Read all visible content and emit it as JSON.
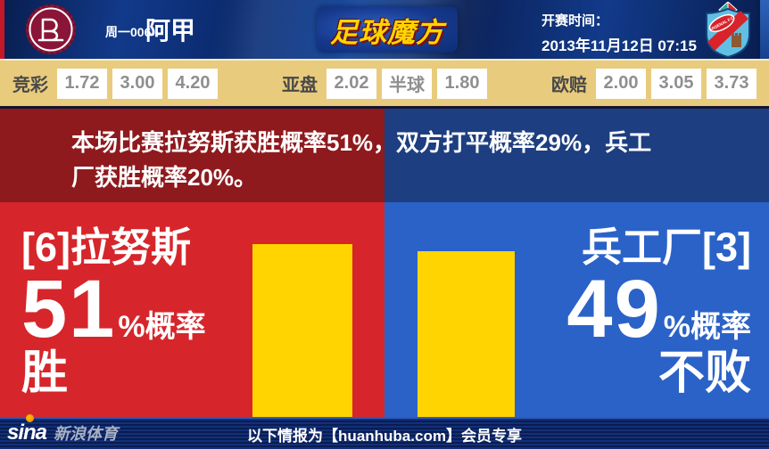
{
  "header": {
    "match_label": "周一006",
    "league": "阿甲",
    "brand_logo_text": "足球魔方",
    "kickoff_label": "开赛时间：",
    "kickoff_time": "2013年11月12日 07:15",
    "away_crest_text": "ARSENAL F.C."
  },
  "odds": {
    "groups": [
      {
        "label": "竞彩",
        "values": [
          "1.72",
          "3.00",
          "4.20"
        ]
      },
      {
        "label": "亚盘",
        "values": [
          "2.02",
          "半球",
          "1.80"
        ]
      },
      {
        "label": "欧赔",
        "values": [
          "2.00",
          "3.05",
          "3.73"
        ]
      }
    ]
  },
  "banner": {
    "text": "本场比赛拉努斯获胜概率51%，双方打平概率29%，兵工厂获胜概率20%。"
  },
  "prediction": {
    "home": {
      "name": "[6]拉努斯",
      "probability": "51",
      "suffix": "%概率",
      "outcome": "胜",
      "bar_value": 51
    },
    "away": {
      "name": "兵工厂[3]",
      "probability": "49",
      "suffix": "%概率",
      "outcome": "不败",
      "bar_value": 49
    }
  },
  "footer": {
    "brand": "sina",
    "brand_suffix": "新浪体育",
    "notice": "以下情报为【huanhuba.com】会员专享"
  },
  "colors": {
    "home_main": "#d6262b",
    "away_main": "#2a62c8",
    "home_dark": "#8e1a1e",
    "away_dark": "#1d3e80",
    "bar_yellow": "#ffd400",
    "odds_bg": "#e8cb7c",
    "header_navy": "#0d2d71",
    "brand_gold": "#ffd400"
  },
  "chart_data": {
    "type": "bar",
    "categories": [
      "[6]拉努斯 胜",
      "兵工厂[3] 不败"
    ],
    "values": [
      51,
      49
    ],
    "unit": "%",
    "bar_color": "#ffd400",
    "annotations": {
      "home_win_pct": 51,
      "draw_pct": 29,
      "away_win_pct": 20
    },
    "legend_position": "none",
    "grid": false
  }
}
